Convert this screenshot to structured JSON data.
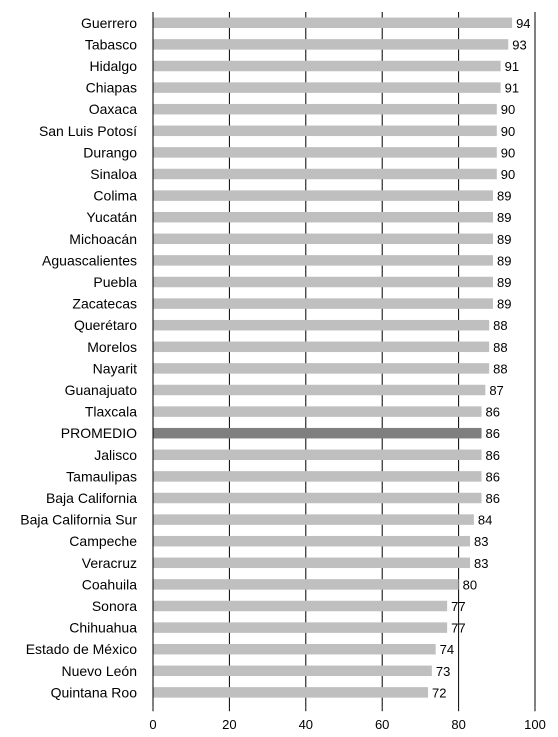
{
  "chart_data": {
    "type": "bar",
    "orientation": "horizontal",
    "categories": [
      "Guerrero",
      "Tabasco",
      "Hidalgo",
      "Chiapas",
      "Oaxaca",
      "San Luis Potosí",
      "Durango",
      "Sinaloa",
      "Colima",
      "Yucatán",
      "Michoacán",
      "Aguascalientes",
      "Puebla",
      "Zacatecas",
      "Querétaro",
      "Morelos",
      "Nayarit",
      "Guanajuato",
      "Tlaxcala",
      "PROMEDIO",
      "Jalisco",
      "Tamaulipas",
      "Baja California",
      "Baja California Sur",
      "Campeche",
      "Veracruz",
      "Coahuila",
      "Sonora",
      "Chihuahua",
      "Estado de México",
      "Nuevo León",
      "Quintana Roo"
    ],
    "values": [
      94,
      93,
      91,
      91,
      90,
      90,
      90,
      90,
      89,
      89,
      89,
      89,
      89,
      89,
      88,
      88,
      88,
      87,
      86,
      86,
      86,
      86,
      86,
      84,
      83,
      83,
      80,
      77,
      77,
      74,
      73,
      72
    ],
    "highlight": "PROMEDIO",
    "colors": {
      "bar": "#bfbfbf",
      "highlight": "#7f7f7f",
      "grid": "#000000"
    },
    "xlim": [
      0,
      100
    ],
    "xticks": [
      0,
      20,
      40,
      60,
      80,
      100
    ],
    "grid": true,
    "title": "",
    "xlabel": "",
    "ylabel": ""
  }
}
